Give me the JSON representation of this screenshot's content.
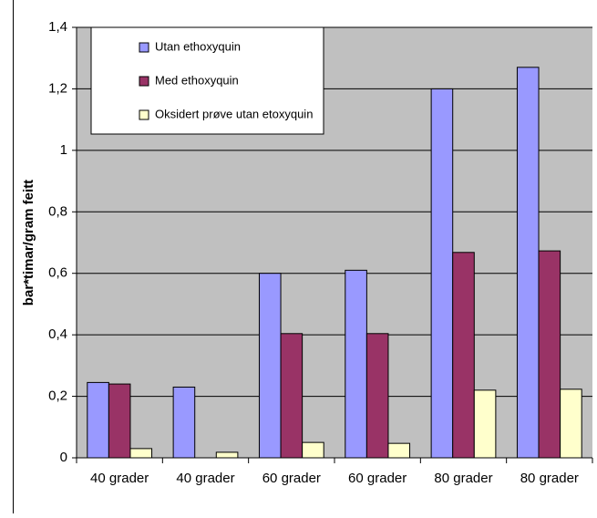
{
  "chart_data": {
    "type": "bar",
    "y_label": "bar*timar/gram feitt",
    "categories": [
      "40 grader",
      "40 grader",
      "60 grader",
      "60 grader",
      "80 grader",
      "80 grader"
    ],
    "series": [
      {
        "name": "Utan ethoxyquin",
        "color": "#9999ff",
        "values": [
          0.245,
          0.23,
          0.6,
          0.61,
          1.2,
          1.27
        ]
      },
      {
        "name": "Med ethoxyquin",
        "color": "#993366",
        "values": [
          0.24,
          null,
          0.404,
          0.404,
          0.668,
          0.673
        ]
      },
      {
        "name": "Oksidert prøve utan etoxyquin",
        "color": "#ffffcc",
        "values": [
          0.03,
          0.018,
          0.05,
          0.047,
          0.22,
          0.223
        ]
      }
    ],
    "ylim": [
      0,
      1.4
    ],
    "yticks": [
      0,
      {
        "value": 0.2,
        "label": "0,2"
      },
      {
        "value": 0.4,
        "label": "0,4"
      },
      {
        "value": 0.6,
        "label": "0,6"
      },
      {
        "value": 0.8,
        "label": "0,8"
      },
      1,
      {
        "value": 1.2,
        "label": "1,2"
      },
      {
        "value": 1.4,
        "label": "1,4"
      }
    ],
    "grid": true,
    "legend": "upper left"
  }
}
